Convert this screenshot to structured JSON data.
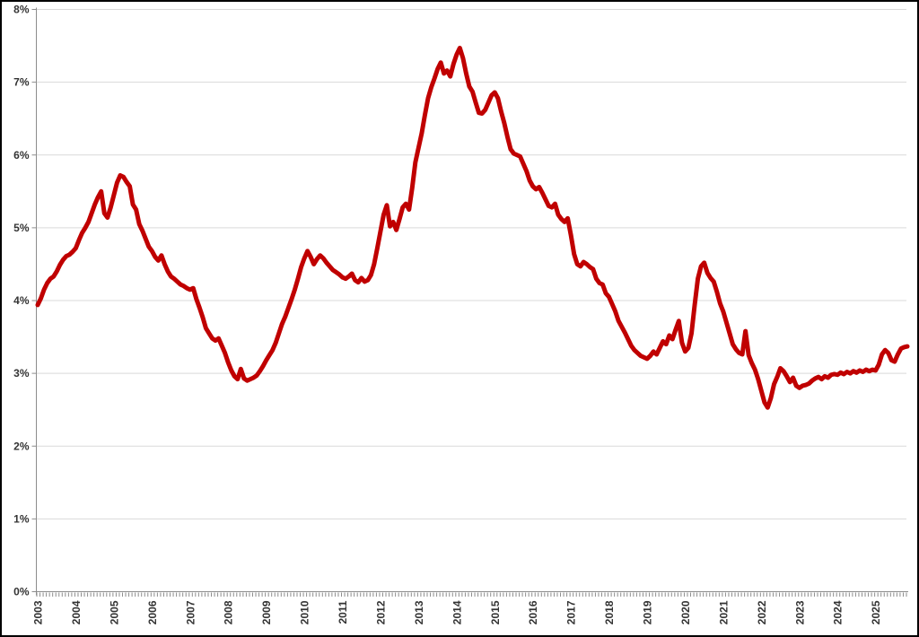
{
  "chart_data": {
    "type": "line",
    "title": "",
    "grid": true,
    "legend": false,
    "ylim": [
      0,
      8
    ],
    "y_tick_labels": [
      "0%",
      "1%",
      "2%",
      "3%",
      "4%",
      "5%",
      "6%",
      "7%",
      "8%"
    ],
    "x_tick_unit": "month",
    "year_labels": [
      "2003",
      "2004",
      "2005",
      "2006",
      "2007",
      "2008",
      "2009",
      "2010",
      "2011",
      "2012",
      "2013",
      "2014",
      "2015",
      "2016",
      "2017",
      "2018",
      "2019",
      "2020",
      "2021",
      "2022",
      "2023",
      "2024",
      "2025"
    ],
    "series": [
      {
        "name": "percentage",
        "start_year": 2003,
        "points_per_year": 12,
        "values_monthly": [
          3.94,
          4.03,
          4.15,
          4.24,
          4.3,
          4.33,
          4.4,
          4.49,
          4.56,
          4.61,
          4.63,
          4.67,
          4.72,
          4.83,
          4.93,
          5.0,
          5.08,
          5.2,
          5.32,
          5.42,
          5.5,
          5.2,
          5.14,
          5.28,
          5.45,
          5.62,
          5.72,
          5.7,
          5.63,
          5.57,
          5.32,
          5.25,
          5.05,
          4.96,
          4.85,
          4.74,
          4.68,
          4.6,
          4.55,
          4.62,
          4.5,
          4.4,
          4.33,
          4.3,
          4.26,
          4.22,
          4.2,
          4.17,
          4.15,
          4.17,
          4.02,
          3.9,
          3.77,
          3.62,
          3.55,
          3.48,
          3.45,
          3.48,
          3.38,
          3.28,
          3.15,
          3.04,
          2.96,
          2.92,
          3.06,
          2.93,
          2.9,
          2.92,
          2.94,
          2.97,
          3.03,
          3.1,
          3.18,
          3.25,
          3.32,
          3.42,
          3.55,
          3.68,
          3.78,
          3.9,
          4.02,
          4.15,
          4.3,
          4.46,
          4.58,
          4.68,
          4.6,
          4.5,
          4.57,
          4.62,
          4.58,
          4.52,
          4.47,
          4.42,
          4.39,
          4.36,
          4.32,
          4.3,
          4.33,
          4.37,
          4.28,
          4.25,
          4.31,
          4.26,
          4.28,
          4.35,
          4.5,
          4.72,
          4.95,
          5.18,
          5.31,
          5.02,
          5.08,
          4.97,
          5.12,
          5.28,
          5.33,
          5.25,
          5.55,
          5.9,
          6.1,
          6.3,
          6.55,
          6.78,
          6.93,
          7.05,
          7.18,
          7.27,
          7.12,
          7.16,
          7.08,
          7.25,
          7.38,
          7.47,
          7.33,
          7.12,
          6.94,
          6.87,
          6.72,
          6.58,
          6.57,
          6.62,
          6.72,
          6.82,
          6.86,
          6.78,
          6.6,
          6.44,
          6.25,
          6.08,
          6.02,
          6.0,
          5.98,
          5.88,
          5.78,
          5.65,
          5.57,
          5.53,
          5.56,
          5.48,
          5.39,
          5.3,
          5.28,
          5.33,
          5.18,
          5.12,
          5.08,
          5.13,
          4.9,
          4.64,
          4.5,
          4.47,
          4.53,
          4.5,
          4.46,
          4.43,
          4.3,
          4.24,
          4.22,
          4.1,
          4.05,
          3.95,
          3.85,
          3.72,
          3.64,
          3.56,
          3.47,
          3.38,
          3.32,
          3.28,
          3.24,
          3.22,
          3.2,
          3.24,
          3.3,
          3.26,
          3.35,
          3.44,
          3.4,
          3.52,
          3.47,
          3.6,
          3.72,
          3.42,
          3.3,
          3.35,
          3.55,
          3.94,
          4.3,
          4.47,
          4.52,
          4.38,
          4.31,
          4.26,
          4.12,
          3.96,
          3.85,
          3.7,
          3.55,
          3.4,
          3.33,
          3.28,
          3.26,
          3.58,
          3.25,
          3.14,
          3.05,
          2.92,
          2.76,
          2.6,
          2.53,
          2.66,
          2.85,
          2.95,
          3.07,
          3.03,
          2.96,
          2.88,
          2.94,
          2.83,
          2.8,
          2.83,
          2.84,
          2.86,
          2.9,
          2.93,
          2.95,
          2.92,
          2.96,
          2.94,
          2.98,
          2.99,
          2.98,
          3.01,
          2.99,
          3.02,
          3.0,
          3.03,
          3.01,
          3.04,
          3.02,
          3.05,
          3.03,
          3.05,
          3.04,
          3.12,
          3.26,
          3.32,
          3.28,
          3.18,
          3.16,
          3.26,
          3.34,
          3.36,
          3.37
        ]
      }
    ],
    "colors": {
      "line": "#C00000",
      "gridline": "#D9D9D9",
      "axis": "#8C8C8C",
      "label": "#333333",
      "background": "#FFFFFF",
      "border": "#000000"
    }
  }
}
